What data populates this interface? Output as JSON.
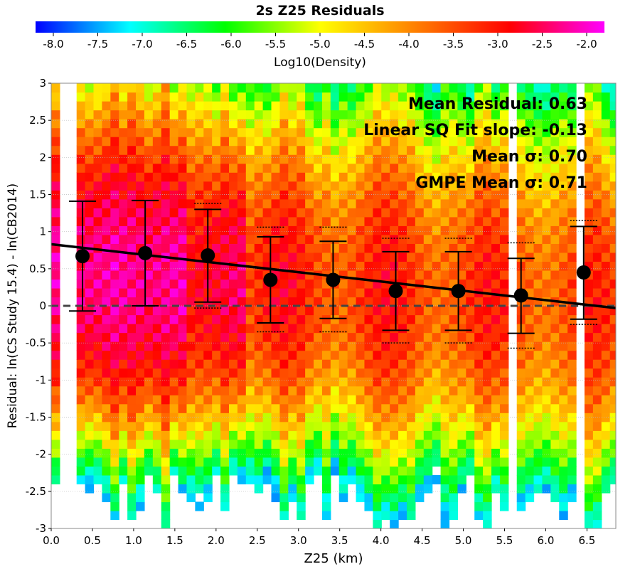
{
  "chart_data": {
    "type": "heatmap",
    "title": "2s Z25 Residuals",
    "xlabel": "Z25 (km)",
    "ylabel": "Residual: ln(CS Study 15.4) - ln(CB2014)",
    "xlim": [
      0.0,
      6.85
    ],
    "ylim": [
      -3,
      3
    ],
    "x_ticks": [
      "0.0",
      "0.5",
      "1.0",
      "1.5",
      "2.0",
      "2.5",
      "3.0",
      "3.5",
      "4.0",
      "4.5",
      "5.0",
      "5.5",
      "6.0",
      "6.5"
    ],
    "y_ticks": [
      "-3",
      "-2.5",
      "-2",
      "-1.5",
      "-1",
      "-0.5",
      "0",
      "0.5",
      "1",
      "1.5",
      "2",
      "2.5",
      "3"
    ],
    "colorbar": {
      "label": "Log10(Density)",
      "range": [
        -8.2,
        -1.8
      ],
      "ticks": [
        "-8.0",
        "-7.5",
        "-7.0",
        "-6.5",
        "-6.0",
        "-5.5",
        "-5.0",
        "-4.5",
        "-4.0",
        "-3.5",
        "-3.0",
        "-2.5",
        "-2.0"
      ],
      "colors": [
        "#0000ff",
        "#00ffff",
        "#00ff00",
        "#ffff00",
        "#ff8000",
        "#ff0000",
        "#ff00ff"
      ]
    },
    "annotations": [
      "Mean Residual: 0.63",
      "Linear SQ Fit slope: -0.13",
      "Mean σ: 0.70",
      "GMPE Mean σ: 0.71"
    ],
    "fit_line": {
      "x": [
        0.0,
        6.85
      ],
      "y": [
        0.83,
        -0.03
      ]
    },
    "zero_line": 0,
    "binned_means": {
      "x": [
        0.38,
        1.14,
        1.9,
        2.66,
        3.42,
        4.18,
        4.94,
        5.7,
        6.46
      ],
      "mean": [
        0.67,
        0.71,
        0.68,
        0.35,
        0.35,
        0.2,
        0.2,
        0.14,
        0.45
      ],
      "lower": [
        -0.07,
        0.0,
        0.05,
        -0.23,
        -0.17,
        -0.33,
        -0.33,
        -0.37,
        -0.18
      ],
      "upper": [
        1.41,
        1.42,
        1.3,
        0.93,
        0.87,
        0.73,
        0.73,
        0.64,
        1.07
      ],
      "gmpe_lower": [
        -0.07,
        0.0,
        -0.03,
        -0.35,
        -0.35,
        -0.5,
        -0.5,
        -0.57,
        -0.25
      ],
      "gmpe_upper": [
        1.41,
        1.42,
        1.38,
        1.06,
        1.06,
        0.91,
        0.91,
        0.85,
        1.15
      ]
    },
    "grid": true,
    "legend": "none"
  }
}
